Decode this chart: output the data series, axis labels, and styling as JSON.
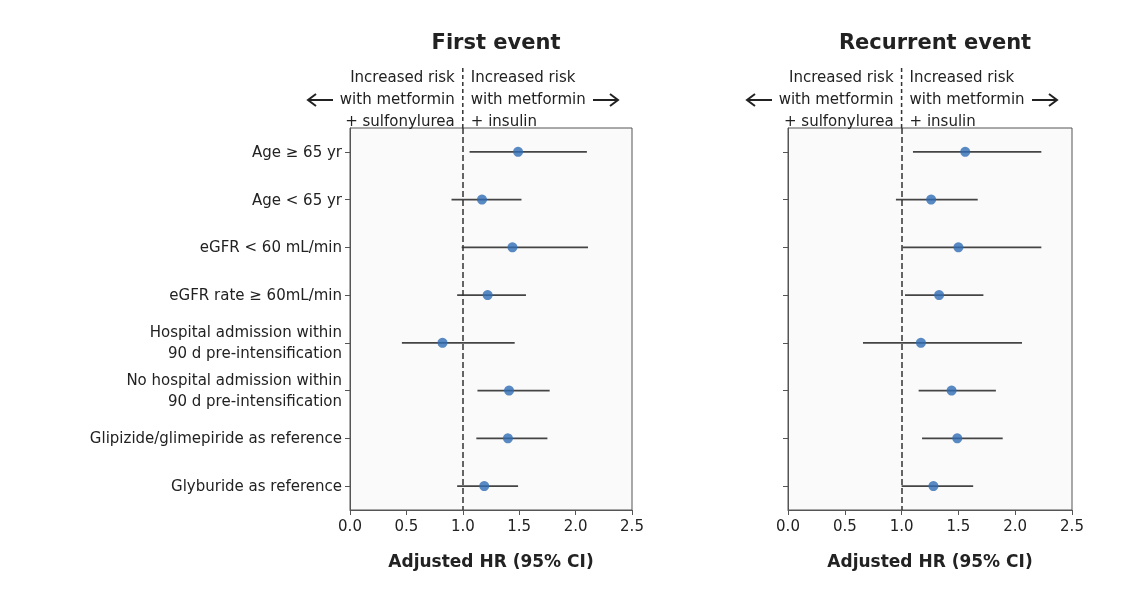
{
  "chart_data": [
    {
      "type": "scatter",
      "title": "First event",
      "xlabel": "Adjusted HR (95% CI)",
      "orientation": "horizontal",
      "marker": "circle",
      "color": "#2f6db5",
      "grid": false,
      "categories": [
        "Age ≥ 65 yr",
        "Age < 65 yr",
        "eGFR < 60 mL/min",
        "eGFR rate ≥ 60mL/min",
        "Hospital admission within\n90 d pre-intensification",
        "No hospital admission within\n90 d pre-intensification",
        "Glipizide/glimepiride as reference",
        "Glyburide as reference"
      ],
      "values": [
        1.49,
        1.17,
        1.44,
        1.22,
        0.82,
        1.41,
        1.4,
        1.19
      ],
      "errors": [
        [
          1.06,
          2.1
        ],
        [
          0.9,
          1.52
        ],
        [
          0.99,
          2.11
        ],
        [
          0.95,
          1.56
        ],
        [
          0.46,
          1.46
        ],
        [
          1.13,
          1.77
        ],
        [
          1.12,
          1.75
        ],
        [
          0.95,
          1.49
        ]
      ],
      "xlim": [
        0,
        2.5
      ],
      "xticks": [
        {
          "value": 0,
          "label": "0.0"
        },
        {
          "value": 0.5,
          "label": "0.5"
        },
        {
          "value": 1,
          "label": "1.0"
        },
        {
          "value": 1.5,
          "label": "1.5"
        },
        {
          "value": 2,
          "label": "2.0"
        },
        {
          "value": 2.5,
          "label": "2.5"
        }
      ],
      "ref_lines": [
        {
          "axis": "x",
          "value": 1,
          "line_style": "dashed",
          "color": "#333333"
        }
      ],
      "annotations": [
        "Increased risk\nwith metformin\n+ sulfonylurea",
        "Increased risk\nwith metformin\n+ insulin"
      ]
    },
    {
      "type": "scatter",
      "title": "Recurrent event",
      "xlabel": "Adjusted HR (95% CI)",
      "orientation": "horizontal",
      "marker": "circle",
      "color": "#2f6db5",
      "grid": false,
      "tick_labels": "x",
      "categories": [
        null,
        null,
        null,
        null,
        null,
        null,
        null,
        null
      ],
      "values": [
        1.56,
        1.26,
        1.5,
        1.33,
        1.17,
        1.44,
        1.49,
        1.28
      ],
      "errors": [
        [
          1.1,
          2.23
        ],
        [
          0.95,
          1.67
        ],
        [
          1.01,
          2.23
        ],
        [
          1.03,
          1.72
        ],
        [
          0.66,
          2.06
        ],
        [
          1.15,
          1.83
        ],
        [
          1.18,
          1.89
        ],
        [
          1.0,
          1.63
        ]
      ],
      "xlim": [
        0,
        2.5
      ],
      "xticks": [
        {
          "value": 0,
          "label": "0.0"
        },
        {
          "value": 0.5,
          "label": "0.5"
        },
        {
          "value": 1,
          "label": "1.0"
        },
        {
          "value": 1.5,
          "label": "1.5"
        },
        {
          "value": 2,
          "label": "2.0"
        },
        {
          "value": 2.5,
          "label": "2.5"
        }
      ],
      "ref_lines": [
        {
          "axis": "x",
          "value": 1,
          "line_style": "dashed",
          "color": "#333333"
        }
      ],
      "annotations": [
        "Increased risk\nwith metformin\n+ sulfonylurea",
        "Increased risk\nwith metformin\n+ insulin"
      ]
    }
  ]
}
